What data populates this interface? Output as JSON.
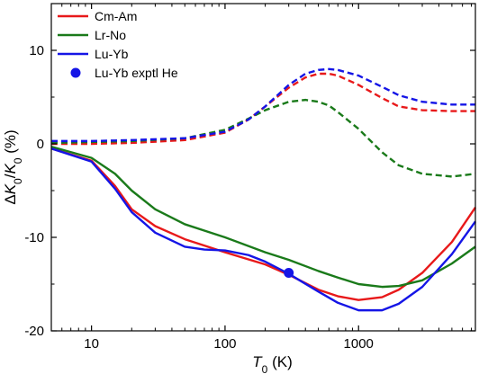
{
  "chart_data": {
    "type": "line",
    "xlabel": {
      "main": "T",
      "sub": "0",
      "unit": " (K)"
    },
    "ylabel": {
      "pre": "Δ",
      "k1": "K",
      "sub1": "0",
      "slash": "/",
      "k2": "K",
      "sub2": "0",
      "unit": " (%)"
    },
    "x_scale": "log",
    "xlim": [
      5,
      7500
    ],
    "ylim": [
      -20,
      15
    ],
    "x_ticks": [
      10,
      100,
      1000
    ],
    "x_tick_labels": [
      "10",
      "100",
      "1000"
    ],
    "y_ticks": [
      -20,
      -10,
      0,
      10
    ],
    "y_tick_labels": [
      "-20",
      "-10",
      "0",
      "10"
    ],
    "legend_position": "top-left",
    "legend": [
      "Cm-Am",
      "Lr-No",
      "Lu-Yb",
      "Lu-Yb exptl He"
    ],
    "colors": {
      "red": "#e8191a",
      "green": "#1a7a1a",
      "blue": "#1515e6"
    },
    "series": [
      {
        "name": "Cm-Am",
        "color": "#e8191a",
        "style": "solid",
        "x": [
          5,
          10,
          15,
          20,
          30,
          50,
          100,
          200,
          300,
          500,
          700,
          1000,
          1500,
          2000,
          3000,
          5000,
          7500
        ],
        "y": [
          -0.5,
          -1.8,
          -4.5,
          -7.0,
          -8.8,
          -10.2,
          -11.6,
          -12.9,
          -14.0,
          -15.6,
          -16.3,
          -16.7,
          -16.4,
          -15.6,
          -13.8,
          -10.5,
          -6.8
        ]
      },
      {
        "name": "Lr-No",
        "color": "#1a7a1a",
        "style": "solid",
        "x": [
          5,
          10,
          15,
          20,
          30,
          50,
          100,
          200,
          300,
          500,
          700,
          1000,
          1500,
          2000,
          3000,
          5000,
          7500
        ],
        "y": [
          -0.3,
          -1.5,
          -3.2,
          -5.0,
          -7.0,
          -8.6,
          -10.0,
          -11.6,
          -12.4,
          -13.6,
          -14.3,
          -15.0,
          -15.3,
          -15.2,
          -14.6,
          -12.8,
          -11.0
        ]
      },
      {
        "name": "Lu-Yb",
        "color": "#1515e6",
        "style": "solid",
        "x": [
          5,
          10,
          15,
          20,
          30,
          50,
          70,
          100,
          150,
          200,
          300,
          500,
          700,
          1000,
          1500,
          2000,
          3000,
          5000,
          7500
        ],
        "y": [
          -0.5,
          -1.9,
          -4.8,
          -7.3,
          -9.5,
          -11.0,
          -11.3,
          -11.4,
          -11.9,
          -12.6,
          -13.9,
          -15.8,
          -17.0,
          -17.8,
          -17.8,
          -17.1,
          -15.3,
          -11.8,
          -8.3
        ]
      },
      {
        "name": "Cm-Am (dashed)",
        "color": "#e8191a",
        "style": "dashed",
        "x": [
          5,
          10,
          20,
          50,
          100,
          150,
          200,
          300,
          400,
          500,
          600,
          700,
          1000,
          1500,
          2000,
          3000,
          5000,
          7500
        ],
        "y": [
          0,
          0,
          0.1,
          0.4,
          1.2,
          2.6,
          4.0,
          6.0,
          7.1,
          7.5,
          7.5,
          7.3,
          6.3,
          4.9,
          4.0,
          3.6,
          3.5,
          3.5
        ]
      },
      {
        "name": "Lr-No (dashed)",
        "color": "#1a7a1a",
        "style": "dashed",
        "x": [
          5,
          10,
          20,
          50,
          100,
          150,
          200,
          300,
          400,
          500,
          600,
          700,
          1000,
          1500,
          2000,
          3000,
          5000,
          7500
        ],
        "y": [
          0.1,
          0.2,
          0.3,
          0.6,
          1.5,
          2.7,
          3.6,
          4.5,
          4.7,
          4.5,
          4.1,
          3.4,
          1.6,
          -0.9,
          -2.3,
          -3.2,
          -3.5,
          -3.2
        ]
      },
      {
        "name": "Lu-Yb (dashed)",
        "color": "#1515e6",
        "style": "dashed",
        "x": [
          5,
          10,
          20,
          50,
          100,
          150,
          200,
          300,
          400,
          500,
          600,
          700,
          1000,
          1500,
          2000,
          3000,
          5000,
          7500
        ],
        "y": [
          0.3,
          0.3,
          0.4,
          0.6,
          1.3,
          2.6,
          4.0,
          6.3,
          7.5,
          7.9,
          8.0,
          7.9,
          7.3,
          6.1,
          5.2,
          4.5,
          4.2,
          4.2
        ]
      }
    ],
    "points": [
      {
        "name": "Lu-Yb exptl He",
        "color": "#1515e6",
        "x": 300,
        "y": -13.8
      }
    ]
  }
}
